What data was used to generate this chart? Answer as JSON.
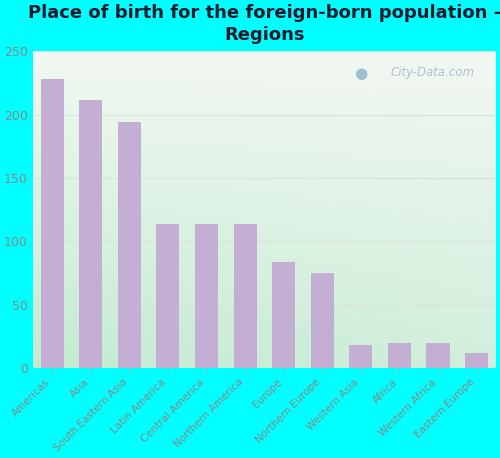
{
  "title": "Place of birth for the foreign-born population -\nRegions",
  "categories": [
    "Americas",
    "Asia",
    "South Eastern Asia",
    "Latin America",
    "Central America",
    "Northern America",
    "Europe",
    "Northern Europe",
    "Western Asia",
    "Africa",
    "Western Africa",
    "Eastern Europe"
  ],
  "values": [
    228,
    212,
    194,
    114,
    114,
    114,
    84,
    75,
    18,
    20,
    20,
    12
  ],
  "bar_color": "#c4aed4",
  "background_color": "#00ffff",
  "ylim": [
    0,
    250
  ],
  "yticks": [
    0,
    50,
    100,
    150,
    200,
    250
  ],
  "title_fontsize": 13,
  "tick_label_fontsize": 7.5,
  "watermark_text": "City-Data.com",
  "watermark_color": "#a8bcc8",
  "grid_color": "#d8e8d8",
  "yticklabel_color": "#888888",
  "xticklabel_color": "#888888"
}
